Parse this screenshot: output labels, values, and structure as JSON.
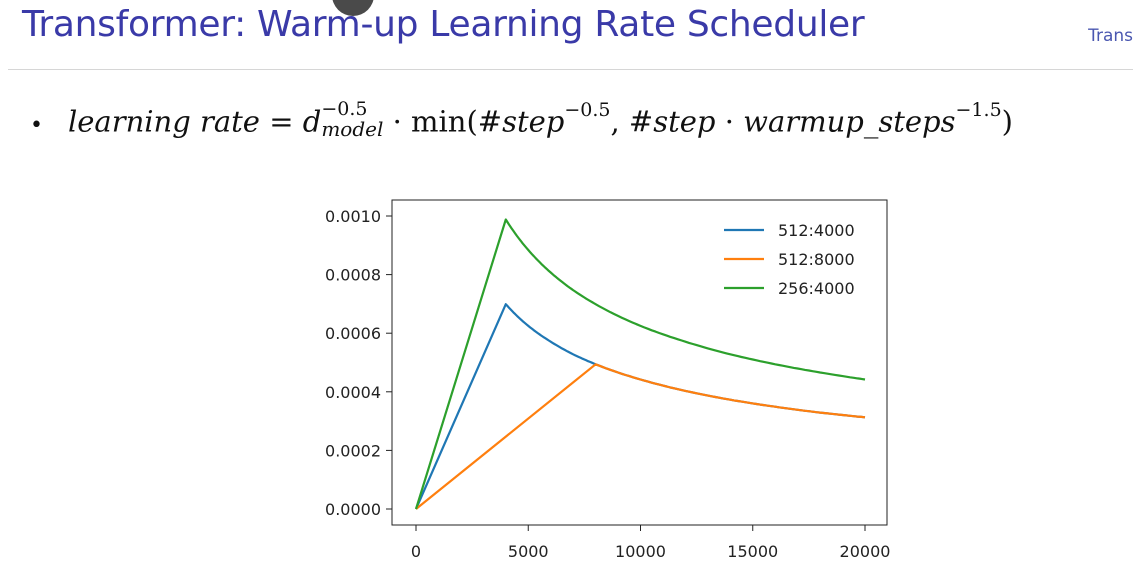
{
  "slide": {
    "title": "Transformer: Warm-up Learning Rate Scheduler",
    "corner_tag": "Trans",
    "bullet": "•",
    "formula": {
      "lhs": "learning rate",
      "eq": " = ",
      "d": "d",
      "d_sup": "−0.5",
      "d_sub": "model",
      "dot": " · ",
      "min": "min(",
      "step1": "#step",
      "step1_sup": "−0.5",
      "comma": ", ",
      "step2": "#step",
      "dot2": " · ",
      "warm": "warmup_steps",
      "warm_sup": "−1.5",
      "close": ")"
    }
  },
  "chart_data": {
    "type": "line",
    "title": "",
    "xlabel": "",
    "ylabel": "",
    "xlim": [
      0,
      20000
    ],
    "ylim": [
      0,
      0.001
    ],
    "xticks": [
      0,
      5000,
      10000,
      15000,
      20000
    ],
    "xtick_labels": [
      "0",
      "5000",
      "10000",
      "15000",
      "20000"
    ],
    "yticks": [
      0,
      0.0002,
      0.0004,
      0.0006,
      0.0008,
      0.001
    ],
    "ytick_labels": [
      "0.0000",
      "0.0002",
      "0.0004",
      "0.0006",
      "0.0008",
      "0.0010"
    ],
    "grid": false,
    "legend_position": "top-right",
    "series": [
      {
        "name": "512:4000",
        "color": "#1f77b4",
        "x": [
          0,
          4000,
          5000,
          6000,
          7000,
          8000,
          10000,
          12000,
          14000,
          16000,
          18000,
          20000
        ],
        "y": [
          0,
          0.000699,
          0.000625,
          0.000571,
          0.000528,
          0.000494,
          0.000442,
          0.000403,
          0.000373,
          0.000349,
          0.000329,
          0.000313
        ]
      },
      {
        "name": "512:8000",
        "color": "#ff7f0e",
        "x": [
          0,
          8000,
          10000,
          12000,
          14000,
          16000,
          18000,
          20000
        ],
        "y": [
          0,
          0.000494,
          0.000442,
          0.000403,
          0.000373,
          0.000349,
          0.000329,
          0.000313
        ]
      },
      {
        "name": "256:4000",
        "color": "#2ca02c",
        "x": [
          0,
          4000,
          5000,
          6000,
          7000,
          8000,
          10000,
          12000,
          14000,
          16000,
          18000,
          20000
        ],
        "y": [
          0,
          0.000988,
          0.000884,
          0.000807,
          0.000747,
          0.000699,
          0.000625,
          0.000571,
          0.000528,
          0.000494,
          0.000466,
          0.000442
        ]
      }
    ]
  }
}
